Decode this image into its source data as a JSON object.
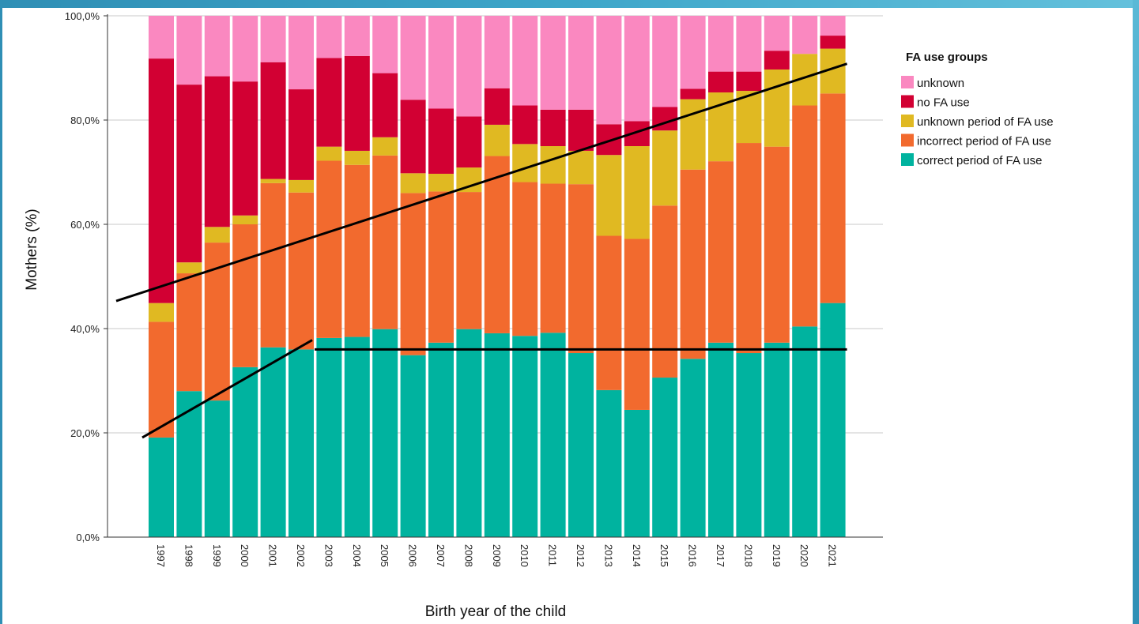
{
  "chart_data": {
    "type": "bar",
    "stacked": true,
    "normalized_percent": true,
    "title": "",
    "xlabel": "Birth year of the child",
    "ylabel": "Mothers (%)",
    "ylim": [
      0,
      100
    ],
    "y_ticks": [
      "0,0%",
      "20,0%",
      "40,0%",
      "60,0%",
      "80,0%",
      "100,0%"
    ],
    "y_tick_values": [
      0,
      20,
      40,
      60,
      80,
      100
    ],
    "grid": true,
    "legend_title": "FA use groups",
    "legend_position": "right",
    "categories": [
      "1997",
      "1998",
      "1999",
      "2000",
      "2001",
      "2002",
      "2003",
      "2004",
      "2005",
      "2006",
      "2007",
      "2008",
      "2009",
      "2010",
      "2011",
      "2012",
      "2013",
      "2014",
      "2015",
      "2016",
      "2017",
      "2018",
      "2019",
      "2020",
      "2021"
    ],
    "series": [
      {
        "name": "correct period of FA use",
        "color": "#00b39f",
        "values": [
          19.1,
          28.0,
          26.2,
          32.6,
          36.4,
          36.0,
          38.2,
          38.4,
          39.9,
          34.9,
          37.3,
          39.9,
          39.1,
          38.6,
          39.2,
          35.3,
          28.2,
          24.4,
          30.6,
          34.2,
          37.3,
          35.3,
          37.3,
          40.4,
          44.9
        ]
      },
      {
        "name": "incorrect period of FA use",
        "color": "#f26a2e",
        "values": [
          22.2,
          22.6,
          30.3,
          27.4,
          31.5,
          30.1,
          34.0,
          33.0,
          33.3,
          31.1,
          29.0,
          26.3,
          34.0,
          29.5,
          28.6,
          32.4,
          29.6,
          32.8,
          33.0,
          36.3,
          34.8,
          40.3,
          37.6,
          42.4,
          40.2
        ]
      },
      {
        "name": "unknown period of FA use",
        "color": "#e0b922",
        "values": [
          3.6,
          2.1,
          3.0,
          1.7,
          0.8,
          2.4,
          2.7,
          2.7,
          3.5,
          3.8,
          3.4,
          4.7,
          6.0,
          7.3,
          7.2,
          6.4,
          15.5,
          17.8,
          14.4,
          13.5,
          13.2,
          10.0,
          14.8,
          9.9,
          8.6
        ]
      },
      {
        "name": "no FA use",
        "color": "#d20033",
        "values": [
          46.9,
          34.1,
          28.9,
          25.7,
          22.4,
          17.4,
          17.0,
          18.2,
          12.3,
          14.1,
          12.5,
          9.8,
          7.0,
          7.4,
          7.0,
          7.9,
          5.9,
          4.8,
          4.5,
          2.0,
          4.0,
          3.7,
          3.6,
          0.0,
          2.5
        ]
      },
      {
        "name": "unknown",
        "color": "#fa88c0",
        "values": [
          8.2,
          13.2,
          11.6,
          12.6,
          8.9,
          14.1,
          8.1,
          7.7,
          11.0,
          16.1,
          17.8,
          19.3,
          13.9,
          17.2,
          18.0,
          18.0,
          20.8,
          20.2,
          17.5,
          14.0,
          10.7,
          10.7,
          6.7,
          7.3,
          3.8
        ]
      }
    ],
    "legend_order": [
      "unknown",
      "no FA use",
      "unknown period of FA use",
      "incorrect period of FA use",
      "correct period of FA use"
    ],
    "annotations": {
      "trend_lines": [
        {
          "from": {
            "x": "1997",
            "y": 45.3
          },
          "to": {
            "x": "2021",
            "y": 90.8
          }
        },
        {
          "from": {
            "x": "1997",
            "y": 19.1
          },
          "to": {
            "x": "2002",
            "y": 37.8
          }
        },
        {
          "from": {
            "x": "2002",
            "y": 36.0
          },
          "to": {
            "x": "2021",
            "y": 36.0
          }
        }
      ],
      "line_color": "#000000"
    }
  }
}
